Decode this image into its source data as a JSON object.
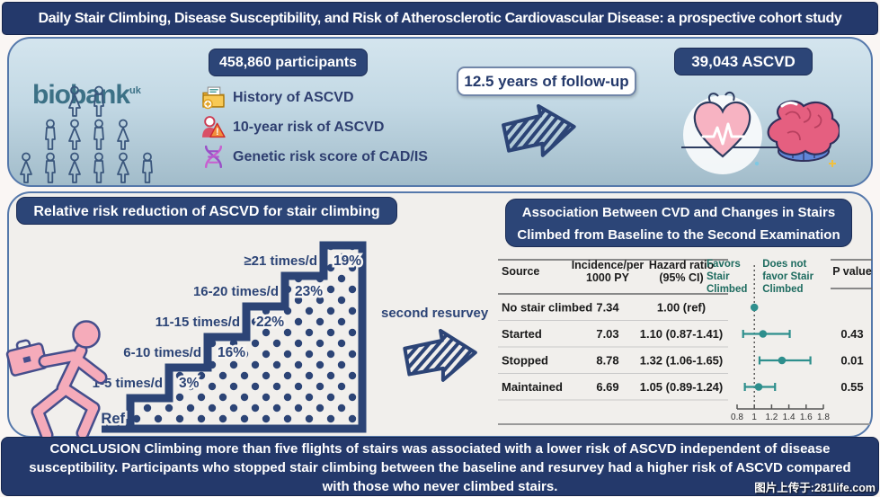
{
  "page": {
    "title": "Daily Stair Climbing, Disease Susceptibility, and Risk of Atherosclerotic Cardiovascular Disease: a prospective cohort study",
    "conclusion": "CONCLUSION Climbing more than five flights of stairs was associated with a lower risk of ASCVD  independent of disease susceptibility. Participants who stopped stair climbing between the baseline and resurvey had a higher risk of ASCVD compared with those who never climbed stairs.",
    "watermark": "图片上传于:281life.com"
  },
  "colors": {
    "navy": "#2c4476",
    "title_navy": "#24396b",
    "teal": "#2e8f8d",
    "favors_teal": "#1d6b5f",
    "pink": "#f5abba",
    "logo_teal": "#3c7186",
    "panel_border": "#5578ab"
  },
  "cohort": {
    "logo_text": "biobank",
    "logo_sup": "uk",
    "people_rows": [
      2,
      4,
      6
    ],
    "participants_badge": "458,860 participants",
    "risk_items": [
      {
        "icon": "folder-plus-icon",
        "label": "History of ASCVD"
      },
      {
        "icon": "person-warning-icon",
        "label": "10-year risk of ASCVD"
      },
      {
        "icon": "dna-icon",
        "label": "Genetic risk score of CAD/IS"
      }
    ],
    "followup_badge": "12.5 years of follow-up",
    "outcome_badge": "39,043 ASCVD"
  },
  "stairs": {
    "header": "Relative risk reduction of ASCVD for stair climbing",
    "resurvey_label": "second resurvey"
  },
  "association": {
    "header": "Association Between CVD and Changes in Stairs Climbed from Baseline to the Second Examination"
  },
  "chart_data": [
    {
      "type": "bar",
      "title": "Relative risk reduction of ASCVD for stair climbing",
      "categories": [
        "Ref",
        "1-5 times/d",
        "6-10 times/d",
        "11-15 times/d",
        "16-20 times/d",
        "≥21 times/d"
      ],
      "values": [
        0,
        3,
        16,
        22,
        23,
        19
      ],
      "unit": "%",
      "ylabel": "relative risk reduction of ASCVD"
    },
    {
      "type": "table",
      "title": "Association Between CVD and Changes in Stairs Climbed from Baseline to the Second Examination",
      "columns": [
        "Source",
        "Incidence/per 1000 PY",
        "Hazard ratio (95% CI)",
        "P value"
      ],
      "columns_display": [
        [
          "Source"
        ],
        [
          "Incidence/per",
          "1000 PY"
        ],
        [
          "Hazard ratio",
          "(95% CI)"
        ],
        [
          "P value"
        ]
      ],
      "forest_headers": {
        "left_lines": [
          "Favors",
          "Stair",
          "Climbed"
        ],
        "right_lines": [
          "Does not",
          "favor Stair",
          "Climbed"
        ]
      },
      "rows": [
        {
          "source": "No stair climbed",
          "incidence": "7.34",
          "hazard_ratio": "1.00 (ref)",
          "hr": 1.0,
          "ci": [
            1.0,
            1.0
          ],
          "p": ""
        },
        {
          "source": "Started",
          "incidence": "7.03",
          "hazard_ratio": "1.10 (0.87-1.41)",
          "hr": 1.1,
          "ci": [
            0.87,
            1.41
          ],
          "p": "0.43"
        },
        {
          "source": "Stopped",
          "incidence": "8.78",
          "hazard_ratio": "1.32 (1.06-1.65)",
          "hr": 1.32,
          "ci": [
            1.06,
            1.65
          ],
          "p": "0.01"
        },
        {
          "source": "Maintained",
          "incidence": "6.69",
          "hazard_ratio": "1.05 (0.89-1.24)",
          "hr": 1.05,
          "ci": [
            0.89,
            1.24
          ],
          "p": "0.55"
        }
      ],
      "axis": {
        "min": 0.8,
        "max": 1.8,
        "ticks": [
          0.8,
          1,
          1.2,
          1.4,
          1.6,
          1.8
        ]
      }
    }
  ]
}
